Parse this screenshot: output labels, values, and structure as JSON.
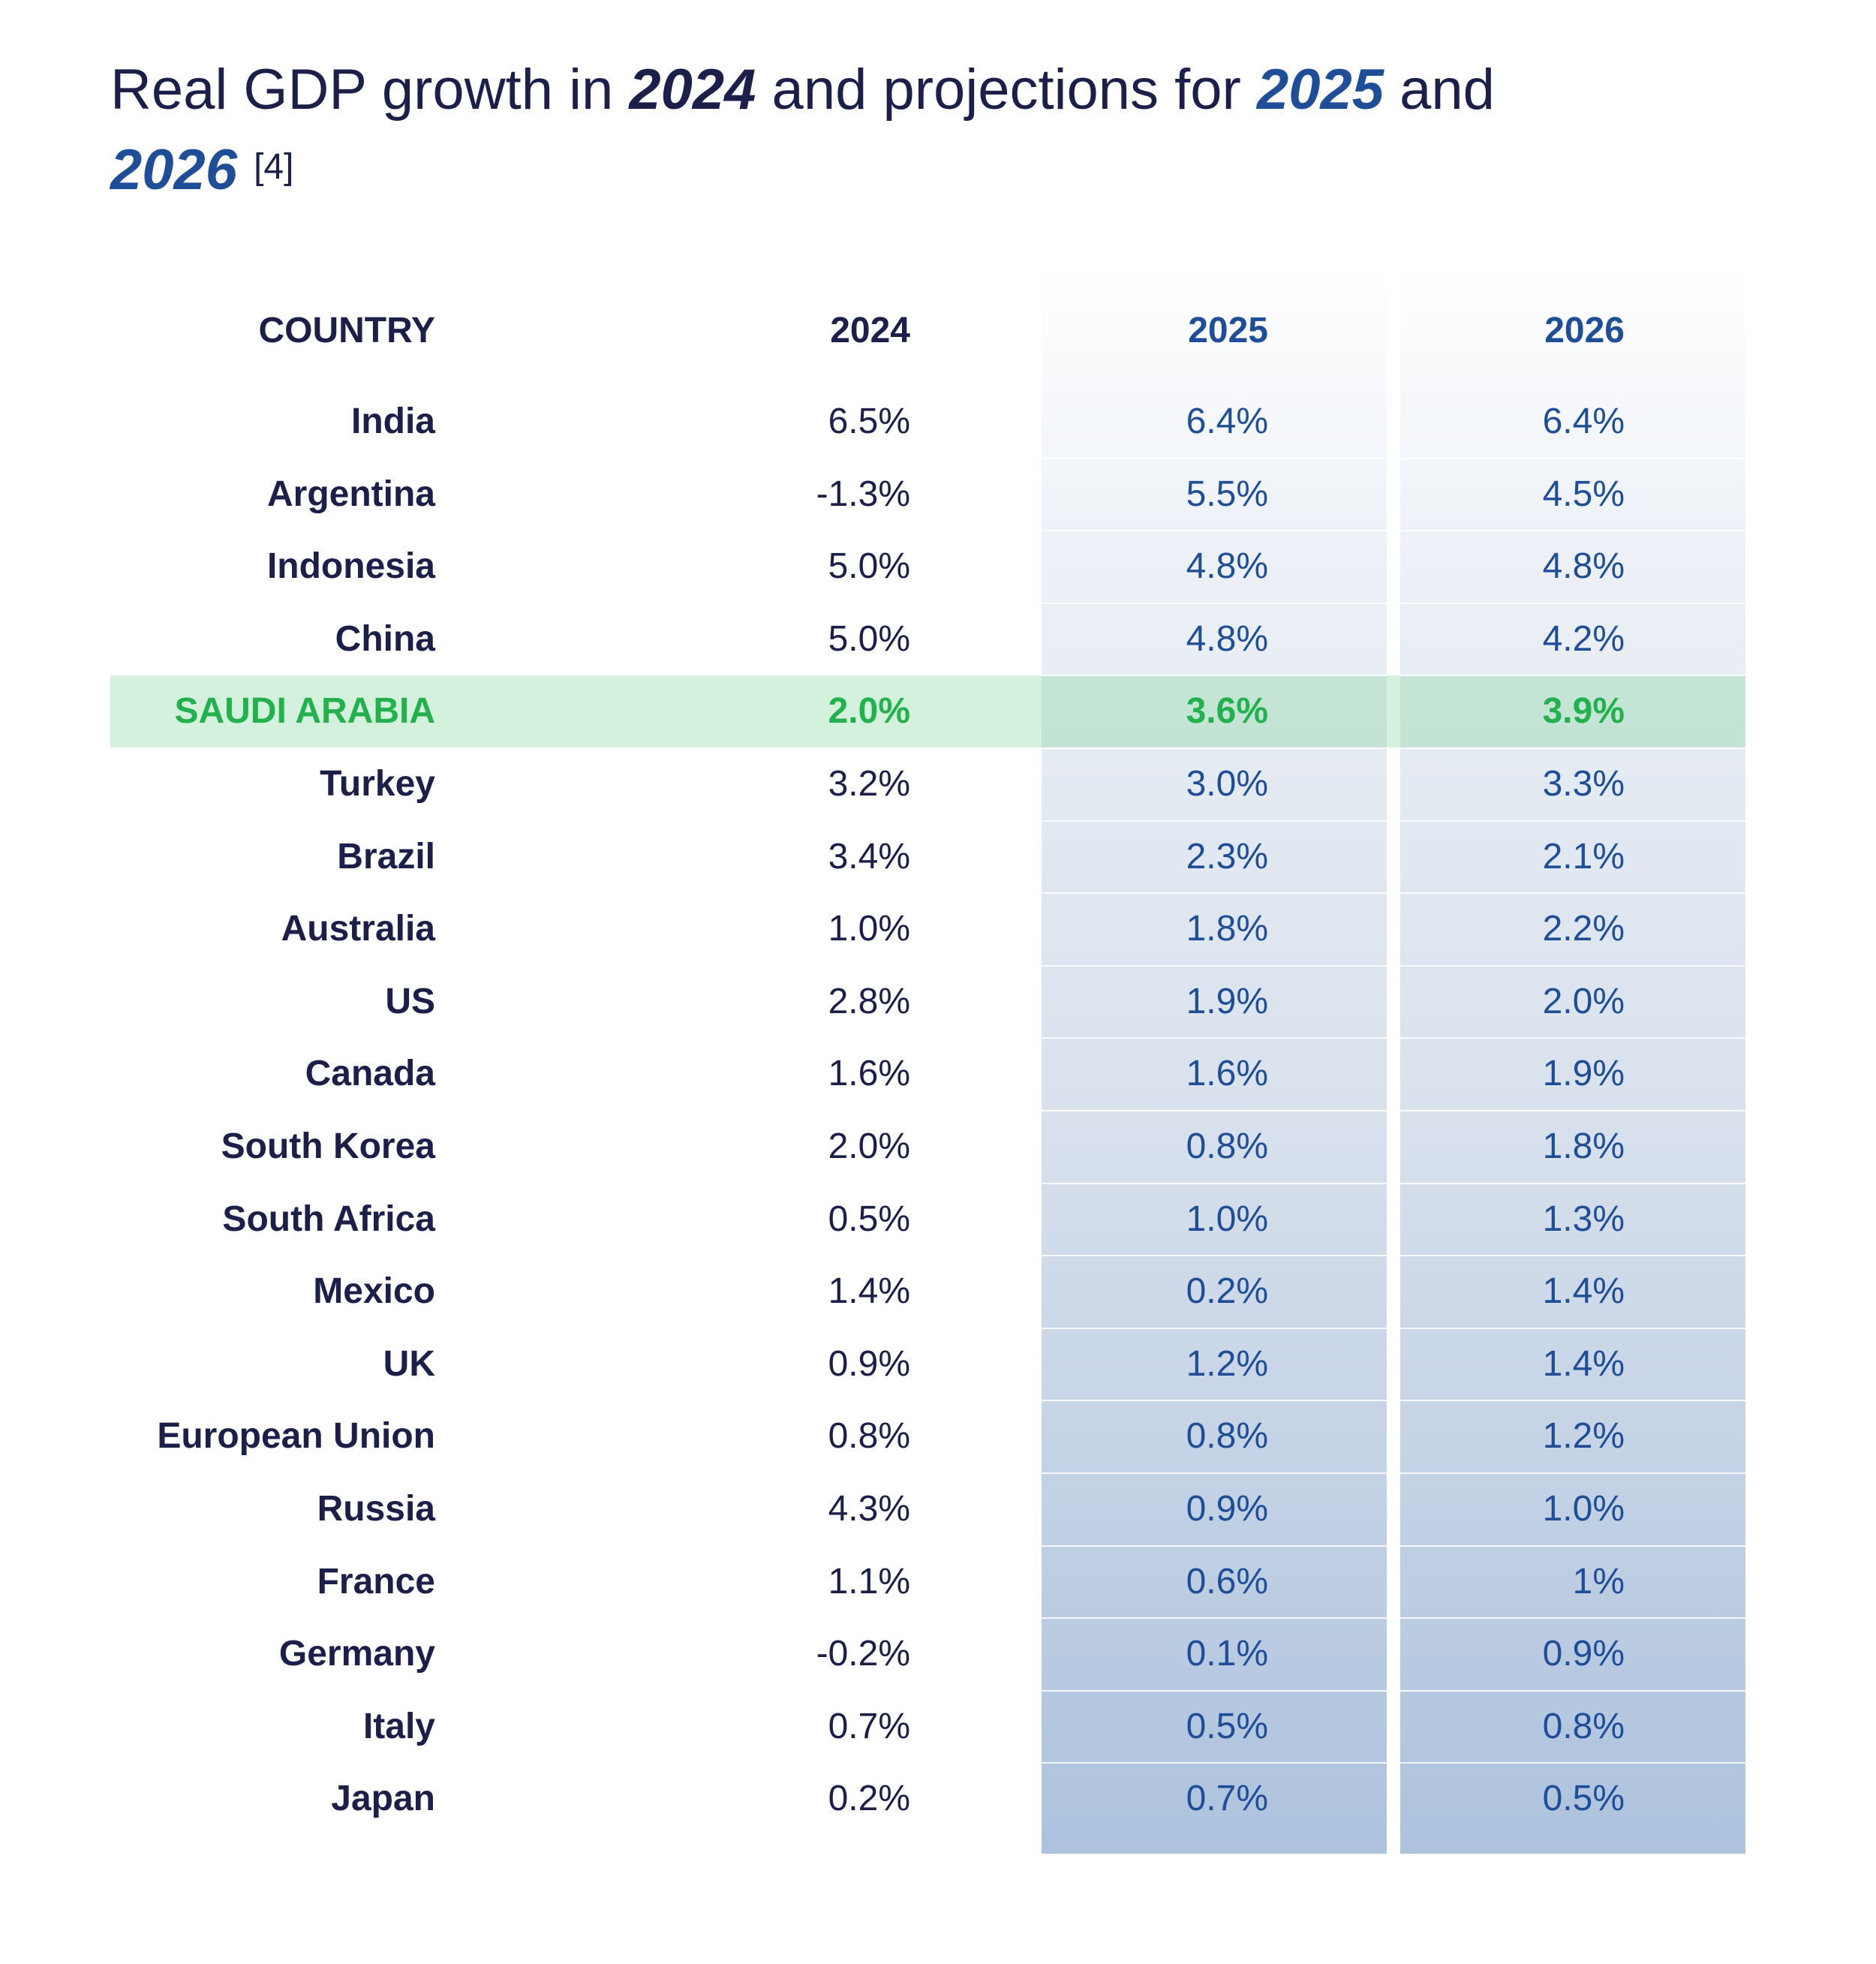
{
  "title": {
    "prefix": "Real GDP growth in ",
    "year1": "2024",
    "middle": " and projections for ",
    "year2": "2025",
    "conj": " and",
    "year3": "2026",
    "reference": "[4]"
  },
  "colors": {
    "text_dark": "#1c1f4a",
    "text_blue": "#1f4e98",
    "highlight_green": "#22b14c"
  },
  "chart_data": {
    "type": "table",
    "title": "Real GDP growth in 2024 and projections for 2025 and 2026 [4]",
    "columns": [
      "COUNTRY",
      "2024",
      "2025",
      "2026"
    ],
    "highlight_row": "SAUDI ARABIA",
    "rows": [
      {
        "country": "India",
        "v2024": "6.5%",
        "v2025": "6.4%",
        "v2026": "6.4%"
      },
      {
        "country": "Argentina",
        "v2024": "-1.3%",
        "v2025": "5.5%",
        "v2026": "4.5%"
      },
      {
        "country": "Indonesia",
        "v2024": "5.0%",
        "v2025": "4.8%",
        "v2026": "4.8%"
      },
      {
        "country": "China",
        "v2024": "5.0%",
        "v2025": "4.8%",
        "v2026": "4.2%"
      },
      {
        "country": "SAUDI ARABIA",
        "v2024": "2.0%",
        "v2025": "3.6%",
        "v2026": "3.9%"
      },
      {
        "country": "Turkey",
        "v2024": "3.2%",
        "v2025": "3.0%",
        "v2026": "3.3%"
      },
      {
        "country": "Brazil",
        "v2024": "3.4%",
        "v2025": "2.3%",
        "v2026": "2.1%"
      },
      {
        "country": "Australia",
        "v2024": "1.0%",
        "v2025": "1.8%",
        "v2026": "2.2%"
      },
      {
        "country": "US",
        "v2024": "2.8%",
        "v2025": "1.9%",
        "v2026": "2.0%"
      },
      {
        "country": "Canada",
        "v2024": "1.6%",
        "v2025": "1.6%",
        "v2026": "1.9%"
      },
      {
        "country": "South Korea",
        "v2024": "2.0%",
        "v2025": "0.8%",
        "v2026": "1.8%"
      },
      {
        "country": "South Africa",
        "v2024": "0.5%",
        "v2025": "1.0%",
        "v2026": "1.3%"
      },
      {
        "country": "Mexico",
        "v2024": "1.4%",
        "v2025": "0.2%",
        "v2026": "1.4%"
      },
      {
        "country": "UK",
        "v2024": "0.9%",
        "v2025": "1.2%",
        "v2026": "1.4%"
      },
      {
        "country": "European Union",
        "v2024": "0.8%",
        "v2025": "0.8%",
        "v2026": "1.2%"
      },
      {
        "country": "Russia",
        "v2024": "4.3%",
        "v2025": "0.9%",
        "v2026": "1.0%"
      },
      {
        "country": "France",
        "v2024": "1.1%",
        "v2025": "0.6%",
        "v2026": "1%"
      },
      {
        "country": "Germany",
        "v2024": "-0.2%",
        "v2025": "0.1%",
        "v2026": "0.9%"
      },
      {
        "country": "Italy",
        "v2024": "0.7%",
        "v2025": "0.5%",
        "v2026": "0.8%"
      },
      {
        "country": "Japan",
        "v2024": "0.2%",
        "v2025": "0.7%",
        "v2026": "0.5%"
      }
    ]
  }
}
